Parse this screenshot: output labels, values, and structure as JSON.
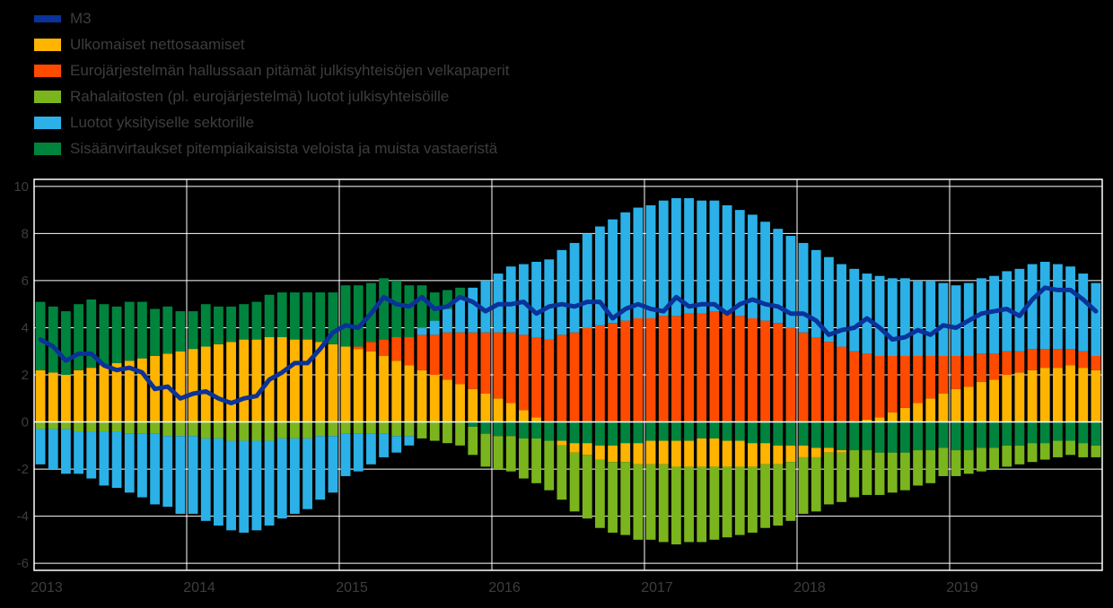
{
  "page": {
    "background": "#000000",
    "text_color": "#3d3d3d"
  },
  "legend": {
    "position": "top-left",
    "items": [
      {
        "label": "M3",
        "color": "#0a3299",
        "type": "line"
      },
      {
        "label": "Ulkomaiset nettosaamiset",
        "color": "#ffb400",
        "type": "box"
      },
      {
        "label": "Eurojärjestelmän hallussaan pitämät julkisyhteisöjen velkapaperit",
        "color": "#ff4b00",
        "type": "box"
      },
      {
        "label": "Rahalaitosten (pl. eurojärjestelmä) luotot julkisyhteisöille",
        "color": "#7ab51d",
        "type": "box"
      },
      {
        "label": "Luotot yksityiselle sektorille",
        "color": "#2bb1e7",
        "type": "box"
      },
      {
        "label": "Sisäänvirtaukset pitempiaikaisista veloista ja muista vastaeristä",
        "color": "#00843d",
        "type": "box"
      }
    ]
  },
  "chart_data": {
    "type": "bar",
    "subtype": "stacked-bars-with-line-overlay",
    "unit": "percent contribution, percentage points",
    "background": "#000000",
    "grid": true,
    "grid_color": "#ffffff",
    "frame_color": "#ffffff",
    "text_color": "#3d3d3d",
    "legend_position": "top-left",
    "ylim": [
      -6,
      10
    ],
    "y_ticks": [
      10,
      8,
      6,
      4,
      2,
      0,
      -2,
      -4,
      -6
    ],
    "y_tick_labels": [
      "10",
      "8",
      "6",
      "4",
      "2",
      "0",
      "-2",
      "-4",
      "-6"
    ],
    "x_ticks": [
      "2013",
      "2014",
      "2015",
      "2016",
      "2017",
      "2018",
      "2019"
    ],
    "months_per_year": 12,
    "n_months": 84,
    "stack_order_positive": [
      0,
      1,
      2,
      3,
      4
    ],
    "stack_order_negative": [
      4,
      0,
      1,
      2,
      3
    ],
    "line_series": {
      "name": "M3",
      "color": "#0a3299",
      "values": [
        3.5,
        3.2,
        2.6,
        2.9,
        2.9,
        2.4,
        2.2,
        2.3,
        2.1,
        1.4,
        1.5,
        1.0,
        1.2,
        1.3,
        1.0,
        0.8,
        1.0,
        1.1,
        1.8,
        2.1,
        2.5,
        2.5,
        3.1,
        3.8,
        4.1,
        4.0,
        4.6,
        5.3,
        5.0,
        4.9,
        5.3,
        4.8,
        4.9,
        5.3,
        5.1,
        4.7,
        5.0,
        5.0,
        5.1,
        4.6,
        4.9,
        5.0,
        4.9,
        5.1,
        5.1,
        4.4,
        4.8,
        5.0,
        4.8,
        4.7,
        5.3,
        4.9,
        5.0,
        5.0,
        4.6,
        5.0,
        5.2,
        5.0,
        4.9,
        4.6,
        4.6,
        4.3,
        3.7,
        3.9,
        4.0,
        4.4,
        4.0,
        3.5,
        3.6,
        3.9,
        3.7,
        4.1,
        4.0,
        4.3,
        4.6,
        4.7,
        4.8,
        4.5,
        5.2,
        5.7,
        5.6,
        5.6,
        5.2,
        4.7
      ]
    },
    "bar_series": [
      {
        "name": "Ulkomaiset nettosaamiset",
        "color": "#ffb400",
        "values": [
          2.2,
          2.1,
          2.0,
          2.2,
          2.3,
          2.4,
          2.5,
          2.6,
          2.7,
          2.8,
          2.9,
          3.0,
          3.1,
          3.2,
          3.3,
          3.4,
          3.5,
          3.5,
          3.6,
          3.6,
          3.5,
          3.5,
          3.4,
          3.3,
          3.2,
          3.1,
          3.0,
          2.8,
          2.6,
          2.4,
          2.2,
          2.0,
          1.8,
          1.6,
          1.4,
          1.2,
          1.0,
          0.8,
          0.5,
          0.2,
          0.0,
          -0.2,
          -0.4,
          -0.5,
          -0.6,
          -0.7,
          -0.8,
          -0.9,
          -1.0,
          -1.0,
          -1.1,
          -1.1,
          -1.2,
          -1.2,
          -1.1,
          -1.1,
          -1.0,
          -0.9,
          -0.8,
          -0.7,
          -0.5,
          -0.4,
          -0.2,
          -0.1,
          0.0,
          0.1,
          0.2,
          0.4,
          0.6,
          0.8,
          1.0,
          1.2,
          1.4,
          1.5,
          1.7,
          1.8,
          2.0,
          2.1,
          2.2,
          2.3,
          2.3,
          2.4,
          2.3,
          2.2
        ]
      },
      {
        "name": "Eurojärjestelmän hallussaan pitämät julkisyhteisöjen velkapaperit",
        "color": "#ff4b00",
        "values": [
          0,
          0,
          0,
          0,
          0,
          0,
          0,
          0,
          0,
          0,
          0,
          0,
          0,
          0,
          0,
          0,
          0,
          0,
          0,
          0,
          0,
          0,
          0,
          0,
          0,
          0.1,
          0.4,
          0.7,
          1.0,
          1.2,
          1.5,
          1.7,
          2.0,
          2.2,
          2.4,
          2.6,
          2.8,
          3.0,
          3.2,
          3.4,
          3.5,
          3.7,
          3.8,
          4.0,
          4.1,
          4.2,
          4.3,
          4.4,
          4.4,
          4.5,
          4.5,
          4.6,
          4.6,
          4.7,
          4.6,
          4.5,
          4.4,
          4.3,
          4.2,
          4.0,
          3.8,
          3.6,
          3.4,
          3.2,
          3.0,
          2.8,
          2.6,
          2.4,
          2.2,
          2.0,
          1.8,
          1.6,
          1.4,
          1.3,
          1.2,
          1.1,
          1.0,
          0.9,
          0.9,
          0.8,
          0.8,
          0.7,
          0.7,
          0.6
        ]
      },
      {
        "name": "Rahalaitosten (pl. eurojärjestelmä) luotot julkisyhteisöille",
        "color": "#7ab51d",
        "values": [
          -0.3,
          -0.3,
          -0.3,
          -0.4,
          -0.4,
          -0.4,
          -0.4,
          -0.5,
          -0.5,
          -0.5,
          -0.6,
          -0.6,
          -0.6,
          -0.7,
          -0.7,
          -0.8,
          -0.8,
          -0.8,
          -0.8,
          -0.7,
          -0.7,
          -0.7,
          -0.6,
          -0.6,
          -0.5,
          -0.5,
          -0.5,
          -0.5,
          -0.6,
          -0.6,
          -0.7,
          -0.8,
          -0.9,
          -1.0,
          -1.2,
          -1.4,
          -1.4,
          -1.5,
          -1.7,
          -1.9,
          -2.1,
          -2.3,
          -2.5,
          -2.7,
          -2.9,
          -3.0,
          -3.1,
          -3.2,
          -3.2,
          -3.3,
          -3.3,
          -3.2,
          -3.2,
          -3.1,
          -3.0,
          -2.9,
          -2.8,
          -2.7,
          -2.6,
          -2.5,
          -2.4,
          -2.3,
          -2.2,
          -2.1,
          -2.0,
          -1.9,
          -1.8,
          -1.7,
          -1.6,
          -1.5,
          -1.4,
          -1.2,
          -1.1,
          -1.0,
          -1.0,
          -0.9,
          -0.9,
          -0.8,
          -0.8,
          -0.7,
          -0.7,
          -0.6,
          -0.6,
          -0.5
        ]
      },
      {
        "name": "Luotot yksityiselle sektorille",
        "color": "#2bb1e7",
        "values": [
          -1.5,
          -1.7,
          -1.9,
          -1.8,
          -2.0,
          -2.3,
          -2.4,
          -2.5,
          -2.7,
          -3.0,
          -3.0,
          -3.3,
          -3.3,
          -3.5,
          -3.7,
          -3.8,
          -3.9,
          -3.8,
          -3.6,
          -3.4,
          -3.2,
          -3.0,
          -2.7,
          -2.4,
          -1.8,
          -1.6,
          -1.3,
          -1.0,
          -0.7,
          -0.4,
          0.3,
          0.6,
          1.0,
          1.5,
          1.9,
          2.2,
          2.5,
          2.8,
          3.0,
          3.2,
          3.4,
          3.6,
          3.8,
          4.0,
          4.2,
          4.4,
          4.6,
          4.7,
          4.8,
          4.9,
          5.0,
          4.9,
          4.8,
          4.7,
          4.6,
          4.5,
          4.4,
          4.2,
          4.0,
          3.9,
          3.8,
          3.7,
          3.6,
          3.5,
          3.5,
          3.4,
          3.4,
          3.3,
          3.3,
          3.2,
          3.2,
          3.1,
          3.0,
          3.1,
          3.2,
          3.3,
          3.4,
          3.5,
          3.6,
          3.7,
          3.6,
          3.5,
          3.3,
          3.1
        ]
      },
      {
        "name": "Sisäänvirtaukset pitempiaikaisista veloista ja muista vastaeristä",
        "color": "#00843d",
        "values": [
          2.9,
          2.8,
          2.7,
          2.8,
          2.9,
          2.6,
          2.4,
          2.5,
          2.4,
          2.0,
          2.0,
          1.7,
          1.6,
          1.8,
          1.6,
          1.5,
          1.5,
          1.6,
          1.8,
          1.9,
          2.0,
          2.0,
          2.1,
          2.2,
          2.6,
          2.6,
          2.5,
          2.6,
          2.4,
          2.2,
          1.8,
          1.2,
          0.8,
          0.4,
          -0.2,
          -0.5,
          -0.6,
          -0.6,
          -0.7,
          -0.7,
          -0.8,
          -0.8,
          -0.9,
          -0.9,
          -1.0,
          -1.0,
          -0.9,
          -0.9,
          -0.8,
          -0.8,
          -0.8,
          -0.8,
          -0.7,
          -0.7,
          -0.8,
          -0.8,
          -0.9,
          -0.9,
          -1.0,
          -1.0,
          -1.0,
          -1.1,
          -1.1,
          -1.2,
          -1.2,
          -1.2,
          -1.3,
          -1.3,
          -1.3,
          -1.2,
          -1.2,
          -1.1,
          -1.2,
          -1.2,
          -1.1,
          -1.1,
          -1.0,
          -1.0,
          -0.9,
          -0.9,
          -0.8,
          -0.8,
          -0.9,
          -1.0
        ]
      }
    ]
  }
}
